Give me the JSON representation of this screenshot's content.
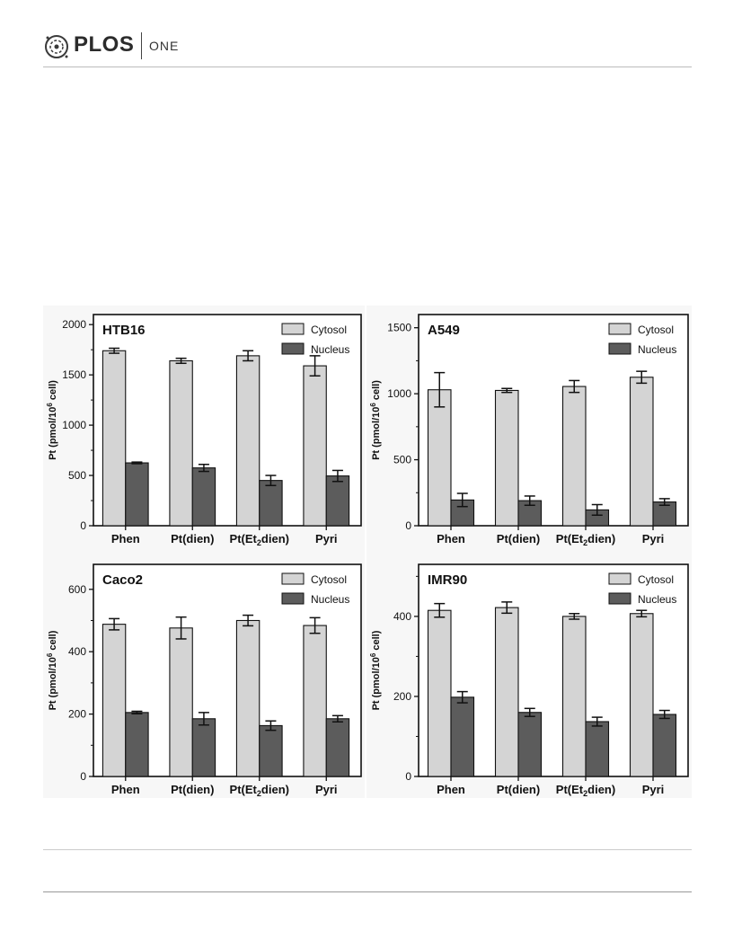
{
  "header": {
    "brand": "PLOS",
    "sub": "ONE"
  },
  "colors": {
    "cytosol": "#d4d4d4",
    "nucleus": "#5c5c5c",
    "panel_bg": "#f7f7f7"
  },
  "chart_data": [
    {
      "type": "bar",
      "title": "HTB16",
      "ylabel": "Pt (pmol/10^6 cell)",
      "ylim": [
        0,
        2100
      ],
      "yticks": [
        0,
        500,
        1000,
        1500,
        2000
      ],
      "categories": [
        "Phen",
        "Pt(dien)",
        "Pt(Et2dien)",
        "Pyri"
      ],
      "series": [
        {
          "name": "Cytosol",
          "values": [
            1740,
            1640,
            1690,
            1590
          ],
          "errors": [
            25,
            25,
            50,
            100
          ]
        },
        {
          "name": "Nucleus",
          "values": [
            625,
            575,
            450,
            495
          ],
          "errors": [
            8,
            35,
            50,
            55
          ]
        }
      ]
    },
    {
      "type": "bar",
      "title": "A549",
      "ylabel": "Pt (pmol/10^6 cell)",
      "ylim": [
        0,
        1600
      ],
      "yticks": [
        0,
        500,
        1000,
        1500
      ],
      "categories": [
        "Phen",
        "Pt(dien)",
        "Pt(Et2dien)",
        "Pyri"
      ],
      "series": [
        {
          "name": "Cytosol",
          "values": [
            1030,
            1025,
            1055,
            1125
          ],
          "errors": [
            130,
            15,
            45,
            45
          ]
        },
        {
          "name": "Nucleus",
          "values": [
            195,
            190,
            120,
            180
          ],
          "errors": [
            50,
            35,
            40,
            25
          ]
        }
      ]
    },
    {
      "type": "bar",
      "title": "Caco2",
      "ylabel": "Pt (pmol/10^6 cell)",
      "ylim": [
        0,
        680
      ],
      "yticks": [
        0,
        200,
        400,
        600
      ],
      "categories": [
        "Phen",
        "Pt(dien)",
        "Pt(Et2dien)",
        "Pyri"
      ],
      "series": [
        {
          "name": "Cytosol",
          "values": [
            488,
            476,
            500,
            484
          ],
          "errors": [
            18,
            35,
            17,
            25
          ]
        },
        {
          "name": "Nucleus",
          "values": [
            205,
            185,
            163,
            185
          ],
          "errors": [
            4,
            20,
            15,
            10
          ]
        }
      ]
    },
    {
      "type": "bar",
      "title": "IMR90",
      "ylabel": "Pt (pmol/10^6 cell)",
      "ylim": [
        0,
        530
      ],
      "yticks": [
        0,
        200,
        400
      ],
      "categories": [
        "Phen",
        "Pt(dien)",
        "Pt(Et2dien)",
        "Pyri"
      ],
      "series": [
        {
          "name": "Cytosol",
          "values": [
            415,
            422,
            400,
            407
          ],
          "errors": [
            17,
            14,
            7,
            8
          ]
        },
        {
          "name": "Nucleus",
          "values": [
            198,
            160,
            137,
            155
          ],
          "errors": [
            14,
            10,
            11,
            10
          ]
        }
      ]
    }
  ]
}
